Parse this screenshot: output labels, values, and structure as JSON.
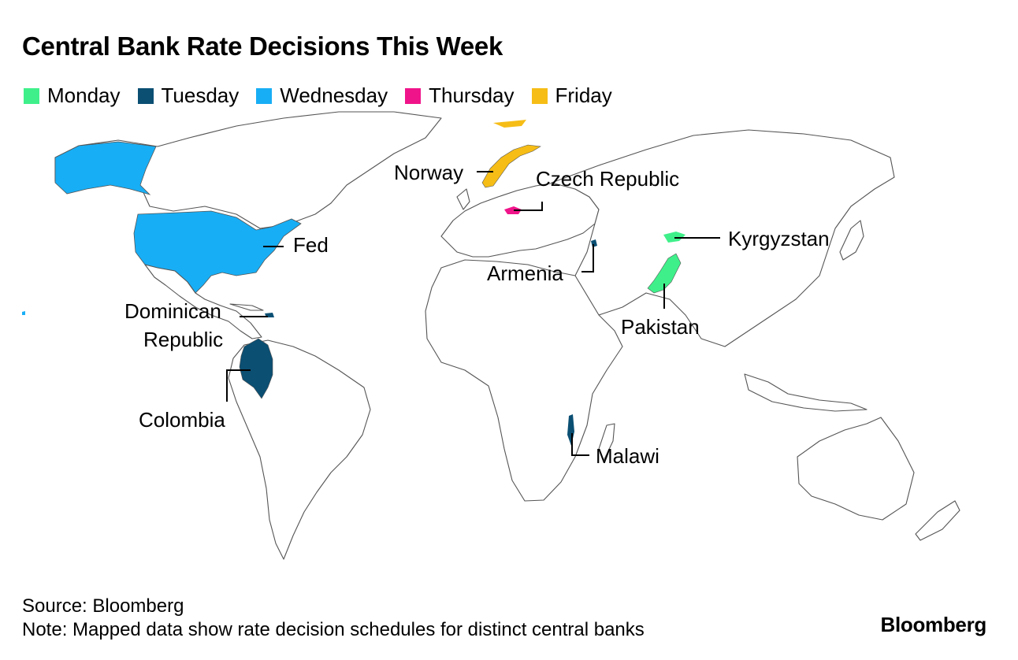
{
  "title": "Central Bank Rate Decisions This Week",
  "legend": [
    {
      "label": "Monday",
      "color": "#3ff08a"
    },
    {
      "label": "Tuesday",
      "color": "#0b4f73"
    },
    {
      "label": "Wednesday",
      "color": "#18aef5"
    },
    {
      "label": "Thursday",
      "color": "#f0148a"
    },
    {
      "label": "Friday",
      "color": "#f6bd16"
    }
  ],
  "labels": {
    "norway": "Norway",
    "czech": "Czech Republic",
    "fed": "Fed",
    "kyrgyzstan": "Kyrgyzstan",
    "armenia": "Armenia",
    "pakistan": "Pakistan",
    "dominican_1": "Dominican",
    "dominican_2": "Republic",
    "colombia": "Colombia",
    "malawi": "Malawi"
  },
  "source": "Source: Bloomberg",
  "note": "Note: Mapped data show rate decision schedules for distinct central banks",
  "logo": "Bloomberg"
}
